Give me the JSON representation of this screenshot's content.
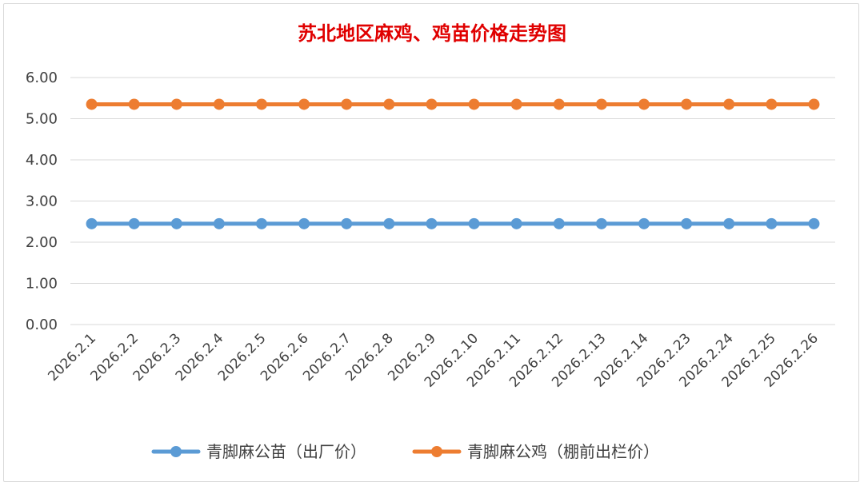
{
  "chart_data": {
    "type": "line",
    "title": "苏北地区麻鸡、鸡苗价格走势图",
    "xlabel": "",
    "ylabel": "",
    "categories": [
      "2026.2.1",
      "2026.2.2",
      "2026.2.3",
      "2026.2.4",
      "2026.2.5",
      "2026.2.6",
      "2026.2.7",
      "2026.2.8",
      "2026.2.9",
      "2026.2.10",
      "2026.2.11",
      "2026.2.12",
      "2026.2.13",
      "2026.2.14",
      "2026.2.23",
      "2026.2.24",
      "2026.2.25",
      "2026.2.26"
    ],
    "ylim": [
      0,
      6
    ],
    "yticks": [
      "0.00",
      "1.00",
      "2.00",
      "3.00",
      "4.00",
      "5.00",
      "6.00"
    ],
    "grid": true,
    "legend_position": "bottom",
    "series": [
      {
        "name": "青脚麻公苗（出厂价）",
        "color": "#5b9bd5",
        "values": [
          2.45,
          2.45,
          2.45,
          2.45,
          2.45,
          2.45,
          2.45,
          2.45,
          2.45,
          2.45,
          2.45,
          2.45,
          2.45,
          2.45,
          2.45,
          2.45,
          2.45,
          2.45
        ]
      },
      {
        "name": "青脚麻公鸡（棚前出栏价）",
        "color": "#ed7d31",
        "values": [
          5.35,
          5.35,
          5.35,
          5.35,
          5.35,
          5.35,
          5.35,
          5.35,
          5.35,
          5.35,
          5.35,
          5.35,
          5.35,
          5.35,
          5.35,
          5.35,
          5.35,
          5.35
        ]
      }
    ]
  }
}
